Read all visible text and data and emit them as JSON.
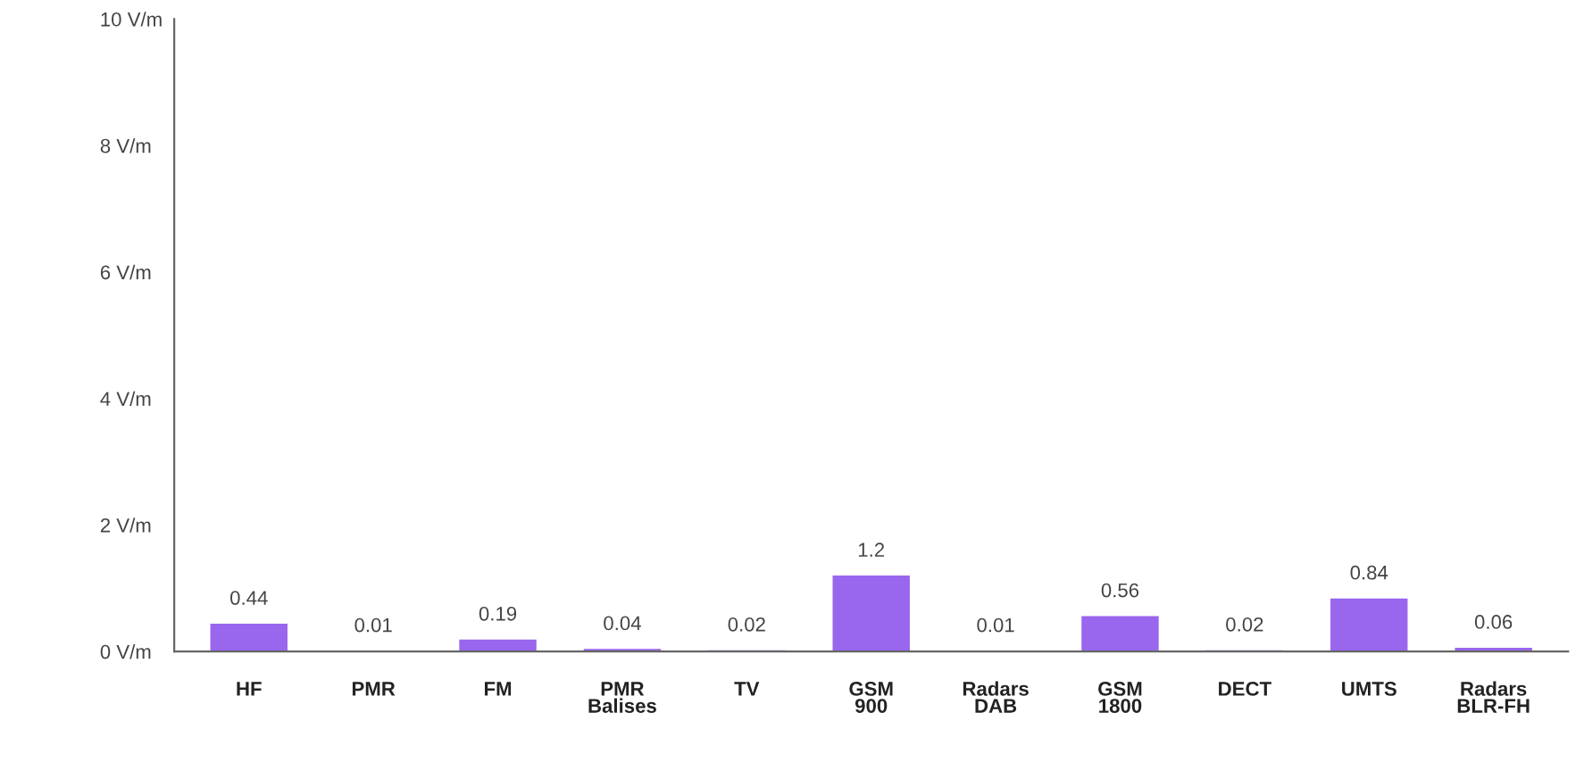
{
  "chart_data": {
    "type": "bar",
    "categories": [
      "HF",
      "PMR",
      "FM",
      "PMR\nBalises",
      "TV",
      "GSM\n900",
      "Radars\nDAB",
      "GSM\n1800",
      "DECT",
      "UMTS",
      "Radars\nBLR-FH"
    ],
    "values": [
      0.44,
      0.01,
      0.19,
      0.04,
      0.02,
      1.2,
      0.01,
      0.56,
      0.02,
      0.84,
      0.06
    ],
    "color": "#9966ee",
    "ylim": [
      0,
      10
    ],
    "yticks": [
      {
        "value": 0,
        "label": "0 V/m"
      },
      {
        "value": 2,
        "label": "2 V/m"
      },
      {
        "value": 4,
        "label": "4 V/m"
      },
      {
        "value": 6,
        "label": "6 V/m"
      },
      {
        "value": 8,
        "label": "8 V/m"
      },
      {
        "value": 10,
        "label": "10 V/m"
      }
    ],
    "data_labels": true,
    "grid": false,
    "legend": false
  }
}
